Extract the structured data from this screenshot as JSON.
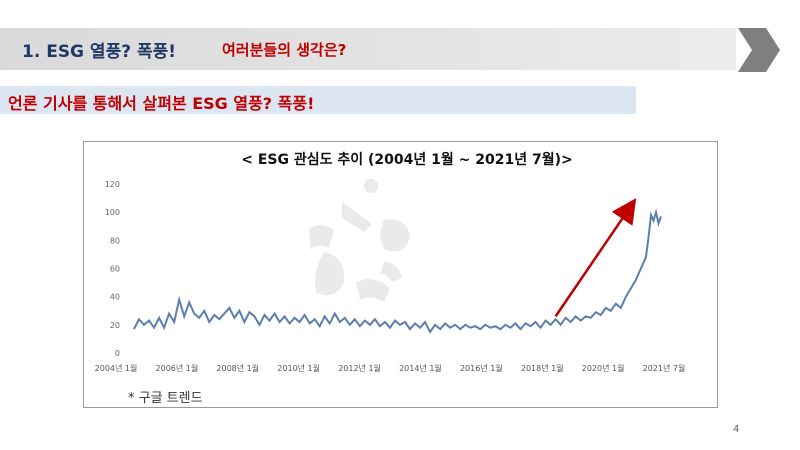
{
  "header": {
    "title": "1.  ESG 열풍? 폭풍!",
    "subtitle": "여러분들의  생각은?",
    "band_color": "#d9d9d9",
    "arrow_color": "#7f7f7f",
    "title_color": "#1f3864"
  },
  "subheading": {
    "text": "언론 기사를 통해서 살펴본 ESG 열풍? 폭풍!",
    "background": "#dce6f2",
    "color": "#c00000"
  },
  "footnote": "* 구글 트렌드",
  "page_number": "4",
  "chart_data": {
    "type": "line",
    "title": "< ESG 관심도 추이 (2004년 1월  ~  2021년 7월)>",
    "xlabel": "",
    "ylabel": "",
    "x_tick_labels": [
      "2004년 1월",
      "2006년 1월",
      "2008년 1월",
      "2010년 1월",
      "2012년 1월",
      "2014년 1월",
      "2016년 1월",
      "2018년 1월",
      "2020년 1월",
      "2021년 7월"
    ],
    "y_ticks": [
      0,
      20,
      40,
      60,
      80,
      100,
      120
    ],
    "ylim": [
      0,
      120
    ],
    "x_range": [
      "2004-01",
      "2021-07"
    ],
    "grid": false,
    "line_color": "#5b7fac",
    "trend_arrow_color": "#c00000",
    "trend_arrow": {
      "from": {
        "x": "2018-01",
        "y": 26
      },
      "to": {
        "x": "2020-08",
        "y": 107
      }
    },
    "series": [
      {
        "points": [
          {
            "x": "2004-01",
            "y": 17
          },
          {
            "x": "2004-03",
            "y": 24
          },
          {
            "x": "2004-05",
            "y": 20
          },
          {
            "x": "2004-07",
            "y": 23
          },
          {
            "x": "2004-09",
            "y": 18
          },
          {
            "x": "2004-11",
            "y": 25
          },
          {
            "x": "2005-01",
            "y": 18
          },
          {
            "x": "2005-03",
            "y": 28
          },
          {
            "x": "2005-05",
            "y": 22
          },
          {
            "x": "2005-07",
            "y": 38
          },
          {
            "x": "2005-09",
            "y": 26
          },
          {
            "x": "2005-11",
            "y": 36
          },
          {
            "x": "2006-01",
            "y": 28
          },
          {
            "x": "2006-03",
            "y": 25
          },
          {
            "x": "2006-05",
            "y": 30
          },
          {
            "x": "2006-07",
            "y": 22
          },
          {
            "x": "2006-09",
            "y": 27
          },
          {
            "x": "2006-11",
            "y": 24
          },
          {
            "x": "2007-01",
            "y": 28
          },
          {
            "x": "2007-03",
            "y": 32
          },
          {
            "x": "2007-05",
            "y": 25
          },
          {
            "x": "2007-07",
            "y": 30
          },
          {
            "x": "2007-09",
            "y": 22
          },
          {
            "x": "2007-11",
            "y": 29
          },
          {
            "x": "2008-01",
            "y": 26
          },
          {
            "x": "2008-03",
            "y": 20
          },
          {
            "x": "2008-05",
            "y": 27
          },
          {
            "x": "2008-07",
            "y": 23
          },
          {
            "x": "2008-09",
            "y": 28
          },
          {
            "x": "2008-11",
            "y": 22
          },
          {
            "x": "2009-01",
            "y": 26
          },
          {
            "x": "2009-03",
            "y": 21
          },
          {
            "x": "2009-05",
            "y": 25
          },
          {
            "x": "2009-07",
            "y": 22
          },
          {
            "x": "2009-09",
            "y": 27
          },
          {
            "x": "2009-11",
            "y": 21
          },
          {
            "x": "2010-01",
            "y": 24
          },
          {
            "x": "2010-03",
            "y": 19
          },
          {
            "x": "2010-05",
            "y": 26
          },
          {
            "x": "2010-07",
            "y": 21
          },
          {
            "x": "2010-09",
            "y": 28
          },
          {
            "x": "2010-11",
            "y": 22
          },
          {
            "x": "2011-01",
            "y": 25
          },
          {
            "x": "2011-03",
            "y": 20
          },
          {
            "x": "2011-05",
            "y": 24
          },
          {
            "x": "2011-07",
            "y": 19
          },
          {
            "x": "2011-09",
            "y": 23
          },
          {
            "x": "2011-11",
            "y": 20
          },
          {
            "x": "2012-01",
            "y": 24
          },
          {
            "x": "2012-03",
            "y": 19
          },
          {
            "x": "2012-05",
            "y": 22
          },
          {
            "x": "2012-07",
            "y": 18
          },
          {
            "x": "2012-09",
            "y": 23
          },
          {
            "x": "2012-11",
            "y": 20
          },
          {
            "x": "2013-01",
            "y": 22
          },
          {
            "x": "2013-03",
            "y": 17
          },
          {
            "x": "2013-05",
            "y": 21
          },
          {
            "x": "2013-07",
            "y": 18
          },
          {
            "x": "2013-09",
            "y": 22
          },
          {
            "x": "2013-11",
            "y": 15
          },
          {
            "x": "2014-01",
            "y": 20
          },
          {
            "x": "2014-03",
            "y": 17
          },
          {
            "x": "2014-05",
            "y": 21
          },
          {
            "x": "2014-07",
            "y": 18
          },
          {
            "x": "2014-09",
            "y": 20
          },
          {
            "x": "2014-11",
            "y": 17
          },
          {
            "x": "2015-01",
            "y": 20
          },
          {
            "x": "2015-03",
            "y": 18
          },
          {
            "x": "2015-05",
            "y": 19
          },
          {
            "x": "2015-07",
            "y": 17
          },
          {
            "x": "2015-09",
            "y": 20
          },
          {
            "x": "2015-11",
            "y": 18
          },
          {
            "x": "2016-01",
            "y": 19
          },
          {
            "x": "2016-03",
            "y": 17
          },
          {
            "x": "2016-05",
            "y": 20
          },
          {
            "x": "2016-07",
            "y": 18
          },
          {
            "x": "2016-09",
            "y": 21
          },
          {
            "x": "2016-11",
            "y": 17
          },
          {
            "x": "2017-01",
            "y": 21
          },
          {
            "x": "2017-03",
            "y": 19
          },
          {
            "x": "2017-05",
            "y": 22
          },
          {
            "x": "2017-07",
            "y": 18
          },
          {
            "x": "2017-09",
            "y": 23
          },
          {
            "x": "2017-11",
            "y": 20
          },
          {
            "x": "2018-01",
            "y": 24
          },
          {
            "x": "2018-03",
            "y": 20
          },
          {
            "x": "2018-05",
            "y": 25
          },
          {
            "x": "2018-07",
            "y": 22
          },
          {
            "x": "2018-09",
            "y": 26
          },
          {
            "x": "2018-11",
            "y": 23
          },
          {
            "x": "2019-01",
            "y": 26
          },
          {
            "x": "2019-03",
            "y": 25
          },
          {
            "x": "2019-05",
            "y": 29
          },
          {
            "x": "2019-07",
            "y": 27
          },
          {
            "x": "2019-09",
            "y": 32
          },
          {
            "x": "2019-11",
            "y": 30
          },
          {
            "x": "2020-01",
            "y": 35
          },
          {
            "x": "2020-03",
            "y": 32
          },
          {
            "x": "2020-05",
            "y": 40
          },
          {
            "x": "2020-07",
            "y": 46
          },
          {
            "x": "2020-09",
            "y": 52
          },
          {
            "x": "2020-11",
            "y": 60
          },
          {
            "x": "2021-01",
            "y": 68
          },
          {
            "x": "2021-02",
            "y": 82
          },
          {
            "x": "2021-03",
            "y": 98
          },
          {
            "x": "2021-04",
            "y": 94
          },
          {
            "x": "2021-05",
            "y": 100
          },
          {
            "x": "2021-06",
            "y": 92
          },
          {
            "x": "2021-07",
            "y": 97
          }
        ]
      }
    ]
  }
}
